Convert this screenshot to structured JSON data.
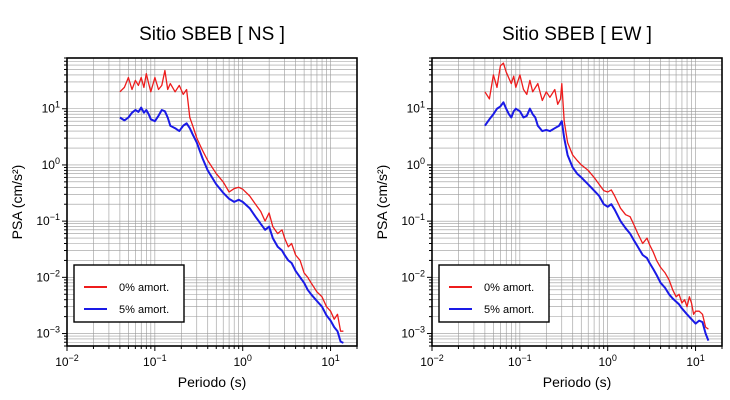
{
  "chart_data": [
    {
      "type": "line",
      "title": "Sitio SBEB [ NS ]",
      "xlabel": "Periodo (s)",
      "ylabel": "PSA (cm/s²)",
      "xscale": "log",
      "yscale": "log",
      "xlim": [
        0.01,
        20
      ],
      "ylim": [
        0.0006,
        80
      ],
      "grid": true,
      "legend_position": "bottom-left",
      "xticks": [
        0.01,
        0.1,
        1,
        10
      ],
      "xtick_labels": [
        {
          "base": "10",
          "exp": "−2"
        },
        {
          "base": "10",
          "exp": "−1"
        },
        {
          "base": "10",
          "exp": "0"
        },
        {
          "base": "10",
          "exp": "1"
        }
      ],
      "yticks": [
        0.001,
        0.01,
        0.1,
        1,
        10
      ],
      "ytick_labels": [
        {
          "base": "10",
          "exp": "−3"
        },
        {
          "base": "10",
          "exp": "−2"
        },
        {
          "base": "10",
          "exp": "−1"
        },
        {
          "base": "10",
          "exp": "0"
        },
        {
          "base": "10",
          "exp": "1"
        }
      ],
      "series": [
        {
          "name": "0% amort.",
          "color": "#ee1c1c",
          "points": [
            [
              0.04,
              20
            ],
            [
              0.045,
              24
            ],
            [
              0.05,
              36
            ],
            [
              0.055,
              22
            ],
            [
              0.06,
              32
            ],
            [
              0.065,
              26
            ],
            [
              0.07,
              36
            ],
            [
              0.075,
              24
            ],
            [
              0.08,
              42
            ],
            [
              0.085,
              28
            ],
            [
              0.09,
              20
            ],
            [
              0.1,
              36
            ],
            [
              0.11,
              22
            ],
            [
              0.12,
              26
            ],
            [
              0.13,
              48
            ],
            [
              0.14,
              22
            ],
            [
              0.15,
              28
            ],
            [
              0.17,
              20
            ],
            [
              0.19,
              26
            ],
            [
              0.21,
              18
            ],
            [
              0.23,
              22
            ],
            [
              0.25,
              7
            ],
            [
              0.27,
              5
            ],
            [
              0.3,
              3
            ],
            [
              0.35,
              1.8
            ],
            [
              0.4,
              1.2
            ],
            [
              0.5,
              0.7
            ],
            [
              0.6,
              0.5
            ],
            [
              0.7,
              0.33
            ],
            [
              0.8,
              0.38
            ],
            [
              0.9,
              0.4
            ],
            [
              1.0,
              0.37
            ],
            [
              1.2,
              0.28
            ],
            [
              1.4,
              0.2
            ],
            [
              1.6,
              0.15
            ],
            [
              1.8,
              0.1
            ],
            [
              2.0,
              0.14
            ],
            [
              2.2,
              0.08
            ],
            [
              2.5,
              0.06
            ],
            [
              2.8,
              0.07
            ],
            [
              3.0,
              0.05
            ],
            [
              3.3,
              0.035
            ],
            [
              3.6,
              0.04
            ],
            [
              4.0,
              0.025
            ],
            [
              4.5,
              0.02
            ],
            [
              5.0,
              0.012
            ],
            [
              5.5,
              0.01
            ],
            [
              6.0,
              0.008
            ],
            [
              7.0,
              0.0055
            ],
            [
              8.0,
              0.0045
            ],
            [
              9.0,
              0.003
            ],
            [
              10,
              0.0025
            ],
            [
              11,
              0.0018
            ],
            [
              12,
              0.0022
            ],
            [
              13,
              0.0011
            ],
            [
              14,
              0.0011
            ]
          ]
        },
        {
          "name": "5% amort.",
          "color": "#1a1ae6",
          "points": [
            [
              0.04,
              7
            ],
            [
              0.045,
              6.2
            ],
            [
              0.05,
              7
            ],
            [
              0.055,
              8.5
            ],
            [
              0.06,
              9.5
            ],
            [
              0.065,
              8.8
            ],
            [
              0.07,
              10.5
            ],
            [
              0.075,
              8.5
            ],
            [
              0.08,
              9.5
            ],
            [
              0.085,
              8
            ],
            [
              0.09,
              6.5
            ],
            [
              0.1,
              6
            ],
            [
              0.11,
              7.5
            ],
            [
              0.12,
              9.5
            ],
            [
              0.13,
              9
            ],
            [
              0.14,
              7
            ],
            [
              0.15,
              5
            ],
            [
              0.17,
              4.5
            ],
            [
              0.19,
              4
            ],
            [
              0.21,
              5
            ],
            [
              0.23,
              5.5
            ],
            [
              0.25,
              4.5
            ],
            [
              0.27,
              3.5
            ],
            [
              0.3,
              2.5
            ],
            [
              0.35,
              1.3
            ],
            [
              0.4,
              0.8
            ],
            [
              0.5,
              0.45
            ],
            [
              0.6,
              0.32
            ],
            [
              0.7,
              0.25
            ],
            [
              0.8,
              0.22
            ],
            [
              0.9,
              0.24
            ],
            [
              1.0,
              0.22
            ],
            [
              1.2,
              0.17
            ],
            [
              1.4,
              0.12
            ],
            [
              1.6,
              0.09
            ],
            [
              1.8,
              0.07
            ],
            [
              2.0,
              0.08
            ],
            [
              2.2,
              0.05
            ],
            [
              2.5,
              0.035
            ],
            [
              2.8,
              0.03
            ],
            [
              3.0,
              0.025
            ],
            [
              3.3,
              0.02
            ],
            [
              3.6,
              0.018
            ],
            [
              4.0,
              0.013
            ],
            [
              4.5,
              0.01
            ],
            [
              5.0,
              0.008
            ],
            [
              5.5,
              0.006
            ],
            [
              6.0,
              0.005
            ],
            [
              7.0,
              0.0038
            ],
            [
              8.0,
              0.003
            ],
            [
              9.0,
              0.0021
            ],
            [
              10,
              0.0017
            ],
            [
              11,
              0.0013
            ],
            [
              12,
              0.0011
            ],
            [
              13,
              0.00072
            ],
            [
              14,
              0.00068
            ]
          ]
        }
      ]
    },
    {
      "type": "line",
      "title": "Sitio SBEB [ EW ]",
      "xlabel": "Periodo (s)",
      "ylabel": "PSA (cm/s²)",
      "xscale": "log",
      "yscale": "log",
      "xlim": [
        0.01,
        20
      ],
      "ylim": [
        0.0006,
        80
      ],
      "grid": true,
      "legend_position": "bottom-left",
      "xticks": [
        0.01,
        0.1,
        1,
        10
      ],
      "xtick_labels": [
        {
          "base": "10",
          "exp": "−2"
        },
        {
          "base": "10",
          "exp": "−1"
        },
        {
          "base": "10",
          "exp": "0"
        },
        {
          "base": "10",
          "exp": "1"
        }
      ],
      "yticks": [
        0.001,
        0.01,
        0.1,
        1,
        10
      ],
      "ytick_labels": [
        {
          "base": "10",
          "exp": "−3"
        },
        {
          "base": "10",
          "exp": "−2"
        },
        {
          "base": "10",
          "exp": "−1"
        },
        {
          "base": "10",
          "exp": "0"
        },
        {
          "base": "10",
          "exp": "1"
        }
      ],
      "series": [
        {
          "name": "0% amort.",
          "color": "#ee1c1c",
          "points": [
            [
              0.04,
              20
            ],
            [
              0.045,
              15
            ],
            [
              0.05,
              40
            ],
            [
              0.055,
              24
            ],
            [
              0.06,
              58
            ],
            [
              0.065,
              65
            ],
            [
              0.07,
              45
            ],
            [
              0.075,
              35
            ],
            [
              0.08,
              28
            ],
            [
              0.085,
              38
            ],
            [
              0.09,
              24
            ],
            [
              0.1,
              40
            ],
            [
              0.11,
              22
            ],
            [
              0.12,
              18
            ],
            [
              0.13,
              32
            ],
            [
              0.14,
              20
            ],
            [
              0.16,
              28
            ],
            [
              0.18,
              14
            ],
            [
              0.2,
              20
            ],
            [
              0.22,
              16
            ],
            [
              0.25,
              22
            ],
            [
              0.27,
              12
            ],
            [
              0.29,
              15
            ],
            [
              0.3,
              28
            ],
            [
              0.32,
              6
            ],
            [
              0.35,
              2.5
            ],
            [
              0.4,
              1.5
            ],
            [
              0.45,
              1.2
            ],
            [
              0.5,
              1.0
            ],
            [
              0.6,
              0.8
            ],
            [
              0.7,
              0.6
            ],
            [
              0.8,
              0.45
            ],
            [
              0.9,
              0.35
            ],
            [
              1.0,
              0.33
            ],
            [
              1.1,
              0.36
            ],
            [
              1.2,
              0.28
            ],
            [
              1.4,
              0.17
            ],
            [
              1.6,
              0.13
            ],
            [
              1.8,
              0.12
            ],
            [
              2.0,
              0.085
            ],
            [
              2.2,
              0.06
            ],
            [
              2.5,
              0.04
            ],
            [
              2.8,
              0.05
            ],
            [
              3.0,
              0.038
            ],
            [
              3.3,
              0.028
            ],
            [
              3.6,
              0.02
            ],
            [
              4.0,
              0.015
            ],
            [
              4.5,
              0.012
            ],
            [
              5.0,
              0.009
            ],
            [
              5.5,
              0.006
            ],
            [
              6.0,
              0.0045
            ],
            [
              6.5,
              0.005
            ],
            [
              7.0,
              0.0035
            ],
            [
              7.5,
              0.004
            ],
            [
              8.0,
              0.003
            ],
            [
              8.5,
              0.0045
            ],
            [
              9.0,
              0.0035
            ],
            [
              9.5,
              0.0022
            ],
            [
              10,
              0.0025
            ],
            [
              11,
              0.0025
            ],
            [
              12,
              0.0022
            ],
            [
              13,
              0.0013
            ],
            [
              14,
              0.0012
            ]
          ]
        },
        {
          "name": "5% amort.",
          "color": "#1a1ae6",
          "points": [
            [
              0.04,
              5
            ],
            [
              0.045,
              6.5
            ],
            [
              0.05,
              8
            ],
            [
              0.055,
              10
            ],
            [
              0.06,
              11
            ],
            [
              0.065,
              13
            ],
            [
              0.07,
              10
            ],
            [
              0.075,
              8
            ],
            [
              0.08,
              7
            ],
            [
              0.085,
              9
            ],
            [
              0.09,
              10
            ],
            [
              0.1,
              9
            ],
            [
              0.11,
              7
            ],
            [
              0.12,
              7.5
            ],
            [
              0.13,
              10
            ],
            [
              0.14,
              8
            ],
            [
              0.15,
              7
            ],
            [
              0.16,
              5
            ],
            [
              0.18,
              4
            ],
            [
              0.2,
              4.2
            ],
            [
              0.22,
              4
            ],
            [
              0.25,
              4.5
            ],
            [
              0.28,
              5
            ],
            [
              0.3,
              6
            ],
            [
              0.32,
              3
            ],
            [
              0.35,
              1.5
            ],
            [
              0.4,
              0.9
            ],
            [
              0.45,
              0.7
            ],
            [
              0.5,
              0.6
            ],
            [
              0.6,
              0.45
            ],
            [
              0.7,
              0.35
            ],
            [
              0.8,
              0.28
            ],
            [
              0.9,
              0.2
            ],
            [
              1.0,
              0.18
            ],
            [
              1.1,
              0.2
            ],
            [
              1.2,
              0.16
            ],
            [
              1.4,
              0.1
            ],
            [
              1.6,
              0.075
            ],
            [
              1.8,
              0.06
            ],
            [
              2.0,
              0.045
            ],
            [
              2.2,
              0.035
            ],
            [
              2.5,
              0.025
            ],
            [
              2.8,
              0.022
            ],
            [
              3.0,
              0.018
            ],
            [
              3.3,
              0.014
            ],
            [
              3.6,
              0.011
            ],
            [
              4.0,
              0.008
            ],
            [
              4.5,
              0.0065
            ],
            [
              5.0,
              0.005
            ],
            [
              5.5,
              0.0042
            ],
            [
              6.0,
              0.0037
            ],
            [
              6.5,
              0.0033
            ],
            [
              7.0,
              0.0028
            ],
            [
              8.0,
              0.0022
            ],
            [
              9.0,
              0.0018
            ],
            [
              10,
              0.0015
            ],
            [
              11,
              0.0017
            ],
            [
              12,
              0.0016
            ],
            [
              13,
              0.001
            ],
            [
              14,
              0.00075
            ]
          ]
        }
      ]
    }
  ]
}
